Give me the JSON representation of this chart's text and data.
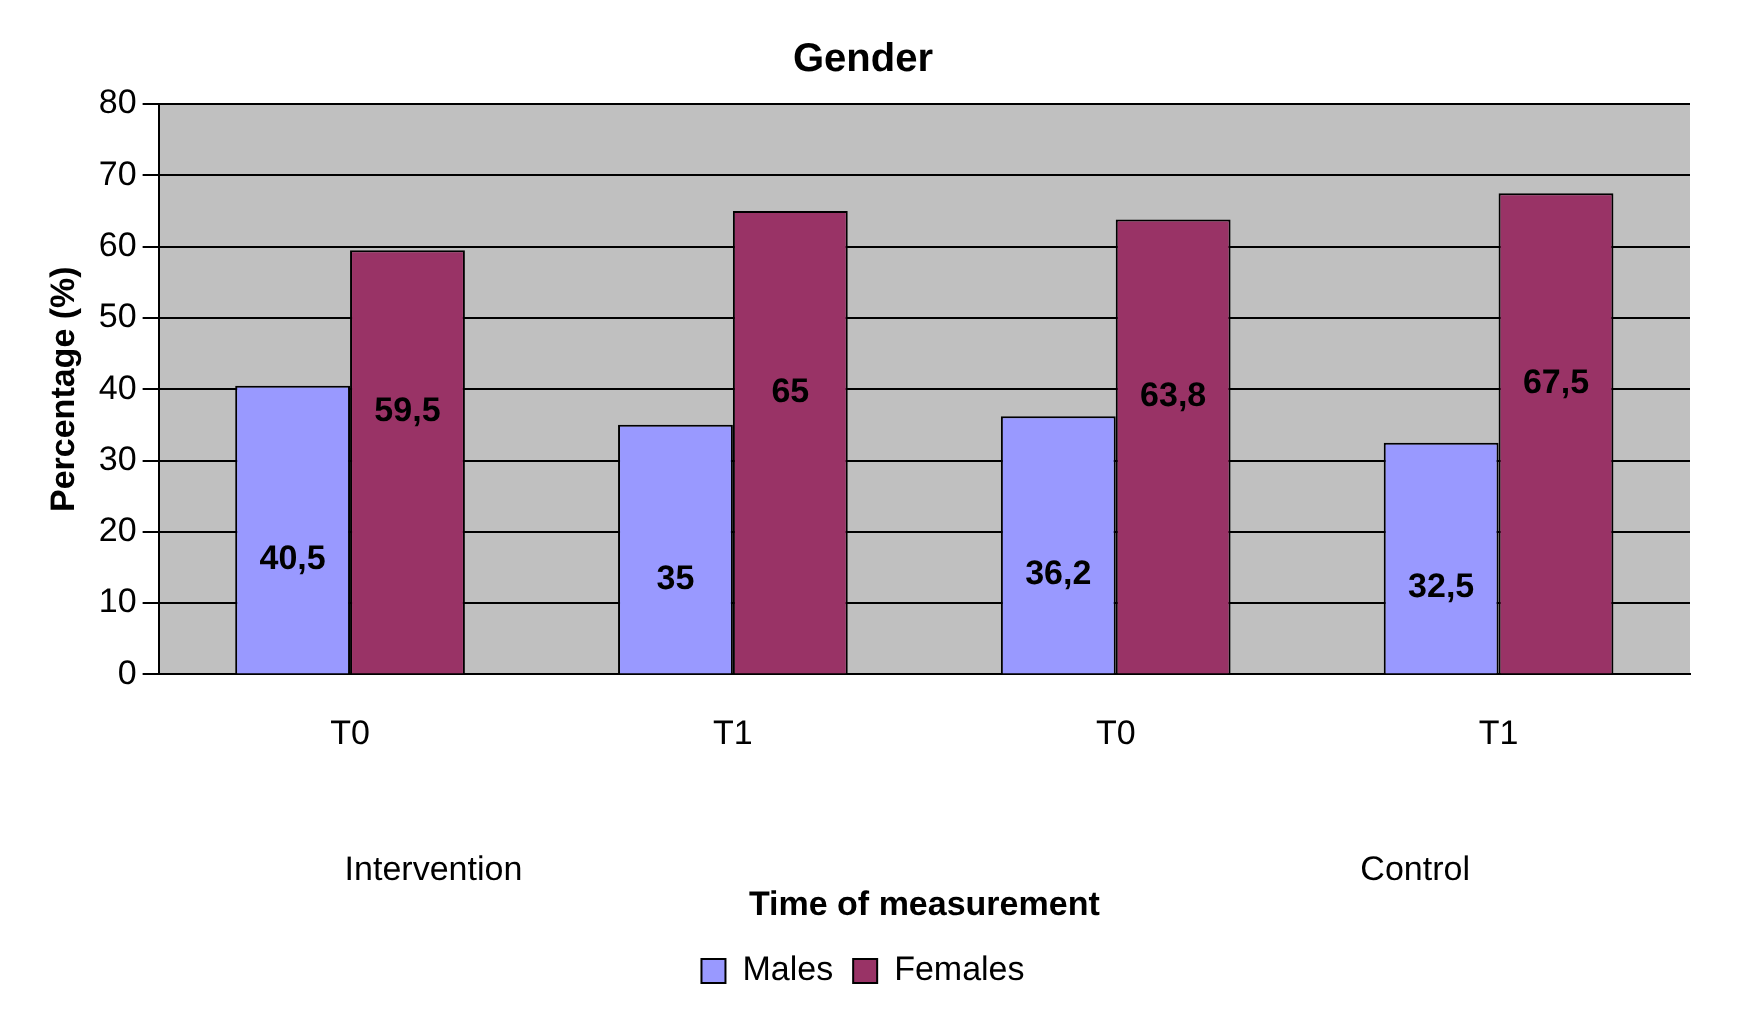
{
  "chart_data": {
    "type": "bar",
    "title": "Gender",
    "xlabel": "Time of measurement",
    "ylabel": "Percentage (%)",
    "categories": [
      "T0",
      "T1",
      "T0",
      "T1"
    ],
    "series": [
      {
        "name": "Males",
        "color": "#9999ff",
        "values": [
          40.5,
          35,
          36.2,
          32.5
        ],
        "value_labels": [
          "40,5",
          "35",
          "36,2",
          "32,5"
        ]
      },
      {
        "name": "Females",
        "color": "#993366",
        "values": [
          59.5,
          65,
          63.8,
          67.5
        ],
        "value_labels": [
          "59,5",
          "65",
          "63,8",
          "67,5"
        ]
      }
    ],
    "annotations": [
      "Intervention",
      "Control"
    ],
    "ylim": [
      0,
      80
    ],
    "yticks": [
      0,
      10,
      20,
      30,
      40,
      50,
      60,
      70,
      80
    ],
    "grid": "y",
    "legend": "bottom"
  }
}
